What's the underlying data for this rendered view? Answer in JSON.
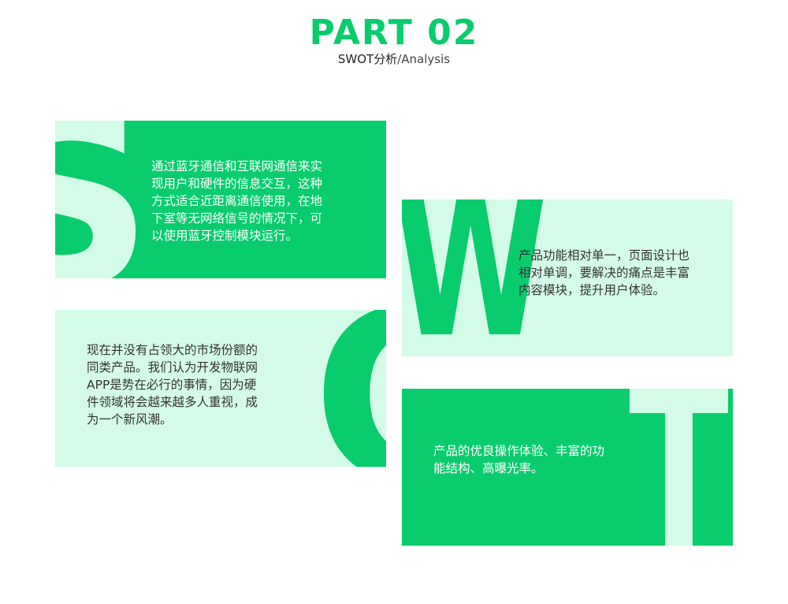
{
  "header": {
    "title": "PART 02",
    "subtitle_cn": "SWOT分析",
    "subtitle_sep": "/",
    "subtitle_en": "Analysis"
  },
  "cards": {
    "s": {
      "letter": "S",
      "text": "通过蓝牙通信和互联网通信来实\n现用户和硬件的信息交互，这种\n方式适合近距离通信使用，在地\n下室等无网络信号的情况下，可\n以使用蓝牙控制模块运行。"
    },
    "w": {
      "letter": "W",
      "text": "产品功能相对单一，页面设计也\n相对单调，要解决的痛点是丰富\n内容模块，提升用户体验。"
    },
    "o": {
      "letter": "O",
      "text": "现在并没有占领大的市场份额的\n同类产品。我们认为开发物联网\nAPP是势在必行的事情，因为硬\n件领域将会越来越多人重视，成\n为一个新风潮。"
    },
    "t": {
      "letter": "T",
      "text": "产品的优良操作体验、丰富的功\n能结构、高曝光率。"
    }
  },
  "colors": {
    "accent": "#09cc6d",
    "light": "#d3fbe8"
  }
}
